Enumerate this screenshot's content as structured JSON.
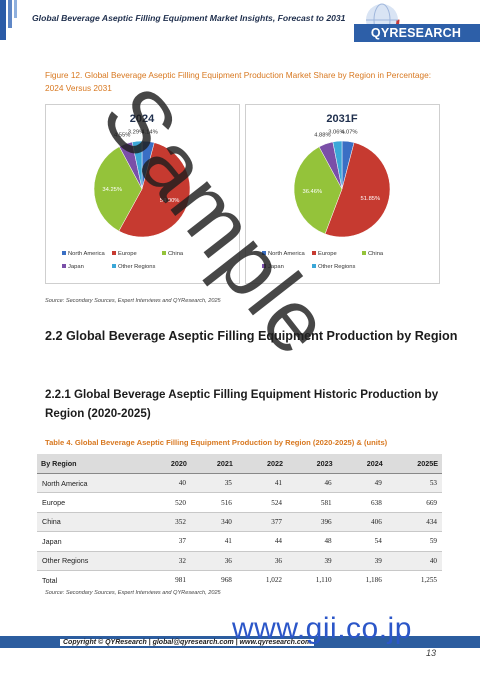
{
  "header": {
    "title": "Global Beverage Aseptic Filling Equipment Market Insights, Forecast to 2031",
    "logo_text": "QYRESEARCH"
  },
  "figure": {
    "caption": "Figure 12.  Global Beverage Aseptic Filling Equipment Production Market Share by Region in Percentage: 2024 Versus 2031",
    "source": "Source: Secondary Sources, Expert Interviews and QYResearch, 2025"
  },
  "chart_data": [
    {
      "type": "pie",
      "title": "2024",
      "categories": [
        "North America",
        "Europe",
        "China",
        "Japan",
        "Other Regions"
      ],
      "values": [
        4.14,
        54.0,
        34.25,
        4.55,
        3.29
      ],
      "value_labels": [
        "4.14%",
        "54.00%",
        "34.25%",
        "4.55%",
        "3.29%"
      ],
      "colors": [
        "#3a6fc4",
        "#c63a30",
        "#94c33a",
        "#7a4fa8",
        "#3ba7d8"
      ],
      "legend": "bottom"
    },
    {
      "type": "pie",
      "title": "2031F",
      "categories": [
        "North America",
        "Europe",
        "China",
        "Japan",
        "Other Regions"
      ],
      "values": [
        4.07,
        51.85,
        36.46,
        4.88,
        3.06
      ],
      "value_labels": [
        "4.07%",
        "51.85%",
        "36.46%",
        "4.88%",
        "3.06%"
      ],
      "colors": [
        "#3a6fc4",
        "#c63a30",
        "#94c33a",
        "#7a4fa8",
        "#3ba7d8"
      ],
      "legend": "bottom"
    }
  ],
  "section_22": "2.2  Global Beverage Aseptic Filling Equipment Production by Region",
  "section_221": "2.2.1  Global Beverage Aseptic Filling Equipment Historic Production by Region (2020-2025)",
  "table": {
    "caption": "Table 4.   Global Beverage Aseptic Filling Equipment Production by Region (2020-2025) & (units)",
    "headers": [
      "By Region",
      "2020",
      "2021",
      "2022",
      "2023",
      "2024",
      "2025E"
    ],
    "rows": [
      [
        "North America",
        "40",
        "35",
        "41",
        "46",
        "49",
        "53"
      ],
      [
        "Europe",
        "520",
        "516",
        "524",
        "581",
        "638",
        "669"
      ],
      [
        "China",
        "352",
        "340",
        "377",
        "396",
        "406",
        "434"
      ],
      [
        "Japan",
        "37",
        "41",
        "44",
        "48",
        "54",
        "59"
      ],
      [
        "Other Regions",
        "32",
        "36",
        "36",
        "39",
        "39",
        "40"
      ],
      [
        "Total",
        "981",
        "968",
        "1,022",
        "1,110",
        "1,186",
        "1,255"
      ]
    ],
    "source": "Source: Secondary Sources, Expert Interviews and QYResearch, 2025"
  },
  "footer": {
    "text": "Copyright © QYResearch | global@qyresearch.com | www.qyresearch.com",
    "page": "13"
  },
  "watermarks": {
    "sample": "Sample",
    "gii": "www.gii.co.jp"
  }
}
